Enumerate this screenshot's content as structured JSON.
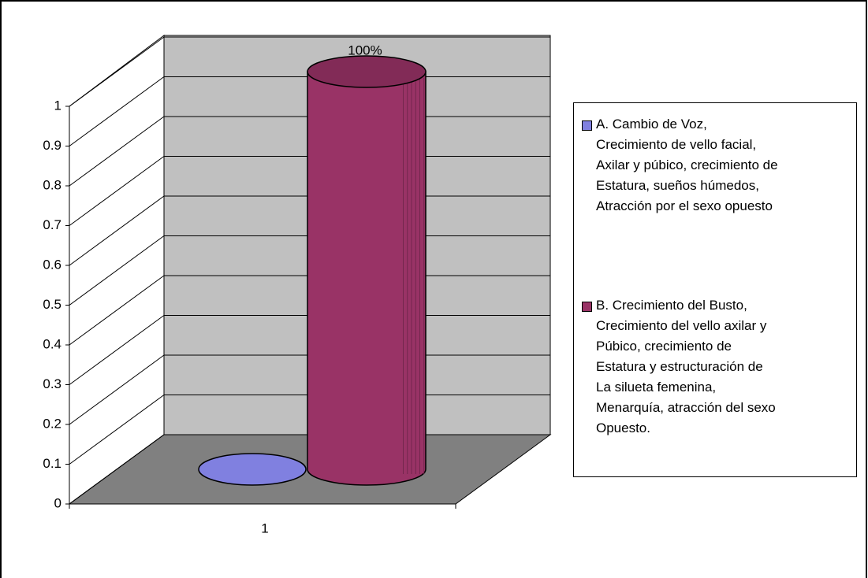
{
  "chart_data": {
    "type": "cylinder3d",
    "categories": [
      "1"
    ],
    "series": [
      {
        "name": "A. Cambio de Voz,\nCrecimiento de vello facial,\nAxilar y púbico, crecimiento de\nEstatura, sueños húmedos,\nAtracción por el sexo opuesto",
        "color": "#8080e0",
        "values": [
          0
        ]
      },
      {
        "name": "B. Crecimiento del Busto,\nCrecimiento del vello axilar y\nPúbico, crecimiento de\nEstatura y estructuración de\nLa silueta femenina,\nMenarquía, atracción del sexo\nOpuesto.",
        "color": "#993366",
        "values": [
          1
        ],
        "value_labels": [
          "100%"
        ]
      }
    ],
    "ylim": [
      0,
      1
    ],
    "yticks": [
      0,
      0.1,
      0.2,
      0.3,
      0.4,
      0.5,
      0.6,
      0.7,
      0.8,
      0.9,
      1
    ],
    "grid": true,
    "legend": "right"
  }
}
